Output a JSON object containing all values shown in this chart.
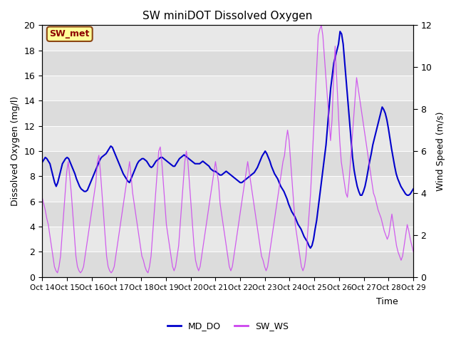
{
  "title": "SW miniDOT Dissolved Oxygen",
  "ylabel_left": "Dissolved Oxygen (mg/l)",
  "ylabel_right": "Wind Speed (m/s)",
  "xlabel": "Time",
  "ylim_left": [
    0,
    20
  ],
  "ylim_right": [
    0,
    12
  ],
  "annotation_text": "SW_met",
  "legend_labels": [
    "MD_DO",
    "SW_WS"
  ],
  "line_color_do": "#0000cc",
  "line_color_ws": "#cc44ee",
  "xtick_labels": [
    "Oct 14",
    "Oct 15",
    "Oct 16",
    "Oct 17",
    "Oct 18",
    "Oct 19",
    "Oct 20",
    "Oct 21",
    "Oct 22",
    "Oct 23",
    "Oct 24",
    "Oct 25",
    "Oct 26",
    "Oct 27",
    "Oct 28",
    "Oct 29"
  ],
  "background_color": "#e8e8e8",
  "band_colors": [
    "#dcdcdc",
    "#e8e8e8"
  ],
  "md_do": [
    9.1,
    9.3,
    9.5,
    9.4,
    9.2,
    9.0,
    8.5,
    8.0,
    7.5,
    7.2,
    7.5,
    8.0,
    8.5,
    9.0,
    9.2,
    9.4,
    9.5,
    9.4,
    9.1,
    8.8,
    8.5,
    8.2,
    7.8,
    7.5,
    7.2,
    7.0,
    6.9,
    6.8,
    6.8,
    6.9,
    7.2,
    7.5,
    7.8,
    8.1,
    8.4,
    8.7,
    9.0,
    9.3,
    9.5,
    9.6,
    9.7,
    9.8,
    10.0,
    10.2,
    10.4,
    10.3,
    10.0,
    9.7,
    9.4,
    9.1,
    8.8,
    8.5,
    8.2,
    8.0,
    7.8,
    7.6,
    7.5,
    7.8,
    8.1,
    8.4,
    8.7,
    9.0,
    9.2,
    9.3,
    9.4,
    9.4,
    9.3,
    9.2,
    9.0,
    8.8,
    8.7,
    8.8,
    9.0,
    9.2,
    9.3,
    9.4,
    9.5,
    9.5,
    9.4,
    9.3,
    9.2,
    9.1,
    9.0,
    8.9,
    8.8,
    8.8,
    9.0,
    9.2,
    9.4,
    9.5,
    9.6,
    9.7,
    9.6,
    9.5,
    9.4,
    9.3,
    9.2,
    9.1,
    9.0,
    9.0,
    9.0,
    9.0,
    9.1,
    9.2,
    9.1,
    9.0,
    8.9,
    8.8,
    8.6,
    8.5,
    8.4,
    8.4,
    8.3,
    8.2,
    8.1,
    8.1,
    8.2,
    8.3,
    8.4,
    8.3,
    8.2,
    8.1,
    8.0,
    7.9,
    7.8,
    7.7,
    7.6,
    7.5,
    7.5,
    7.6,
    7.7,
    7.8,
    7.9,
    8.0,
    8.1,
    8.2,
    8.3,
    8.5,
    8.7,
    9.0,
    9.3,
    9.6,
    9.8,
    10.0,
    9.8,
    9.5,
    9.2,
    8.8,
    8.5,
    8.2,
    8.0,
    7.8,
    7.5,
    7.2,
    7.0,
    6.8,
    6.5,
    6.2,
    5.8,
    5.5,
    5.2,
    5.0,
    4.8,
    4.5,
    4.2,
    4.0,
    3.8,
    3.5,
    3.2,
    3.0,
    2.8,
    2.5,
    2.3,
    2.5,
    3.0,
    3.8,
    4.5,
    5.5,
    6.5,
    7.5,
    8.5,
    9.5,
    10.5,
    12.0,
    13.5,
    15.0,
    16.0,
    17.0,
    17.5,
    18.0,
    18.5,
    19.5,
    19.3,
    18.5,
    17.0,
    15.5,
    14.0,
    12.5,
    11.0,
    9.5,
    8.5,
    7.8,
    7.2,
    6.8,
    6.5,
    6.5,
    6.8,
    7.2,
    7.8,
    8.5,
    9.2,
    9.8,
    10.5,
    11.0,
    11.5,
    12.0,
    12.5,
    13.0,
    13.5,
    13.3,
    13.0,
    12.5,
    11.8,
    11.0,
    10.2,
    9.5,
    8.8,
    8.2,
    7.8,
    7.5,
    7.2,
    7.0,
    6.8,
    6.6,
    6.5,
    6.5,
    6.6,
    6.8,
    7.0
  ],
  "sw_ws": [
    3.8,
    3.5,
    3.2,
    2.8,
    2.5,
    2.0,
    1.5,
    1.0,
    0.5,
    0.3,
    0.2,
    0.5,
    1.0,
    2.0,
    3.0,
    4.0,
    5.0,
    5.5,
    4.8,
    4.0,
    3.0,
    2.0,
    1.0,
    0.5,
    0.3,
    0.2,
    0.3,
    0.5,
    1.0,
    1.5,
    2.0,
    2.5,
    3.0,
    3.5,
    4.0,
    4.5,
    5.5,
    5.8,
    5.0,
    4.0,
    3.0,
    2.0,
    1.0,
    0.5,
    0.3,
    0.2,
    0.3,
    0.5,
    1.0,
    1.5,
    2.0,
    2.5,
    3.0,
    3.5,
    4.0,
    4.5,
    5.0,
    5.5,
    4.8,
    4.0,
    3.5,
    3.0,
    2.5,
    2.0,
    1.5,
    1.0,
    0.8,
    0.5,
    0.3,
    0.2,
    0.5,
    1.0,
    2.0,
    3.0,
    4.0,
    5.0,
    6.0,
    6.2,
    5.5,
    4.5,
    3.5,
    2.5,
    2.0,
    1.5,
    1.0,
    0.5,
    0.3,
    0.5,
    1.0,
    1.5,
    2.5,
    3.5,
    4.5,
    5.5,
    6.0,
    5.5,
    4.5,
    3.5,
    2.5,
    1.5,
    0.8,
    0.5,
    0.3,
    0.5,
    1.0,
    1.5,
    2.0,
    2.5,
    3.0,
    3.5,
    4.0,
    4.5,
    5.0,
    5.5,
    5.0,
    4.5,
    3.5,
    3.0,
    2.5,
    2.0,
    1.5,
    1.0,
    0.5,
    0.3,
    0.5,
    1.0,
    1.5,
    2.0,
    2.5,
    3.0,
    3.5,
    4.0,
    4.5,
    5.0,
    5.5,
    5.0,
    4.5,
    4.0,
    3.5,
    3.0,
    2.5,
    2.0,
    1.5,
    1.0,
    0.8,
    0.5,
    0.3,
    0.5,
    1.0,
    1.5,
    2.0,
    2.5,
    3.0,
    3.5,
    4.0,
    4.5,
    5.0,
    5.5,
    5.8,
    6.5,
    7.0,
    6.5,
    5.5,
    4.5,
    3.5,
    2.5,
    2.0,
    1.5,
    1.0,
    0.5,
    0.3,
    0.5,
    1.0,
    2.0,
    3.0,
    4.0,
    5.5,
    7.0,
    8.5,
    10.0,
    11.5,
    11.8,
    12.0,
    11.5,
    10.5,
    9.5,
    8.5,
    7.5,
    6.5,
    7.5,
    9.5,
    11.0,
    9.5,
    8.0,
    6.5,
    5.5,
    5.0,
    4.5,
    4.0,
    3.8,
    4.5,
    5.5,
    6.5,
    7.5,
    8.5,
    9.5,
    9.0,
    8.5,
    8.0,
    7.5,
    7.0,
    6.5,
    6.0,
    5.5,
    5.0,
    4.5,
    4.0,
    3.8,
    3.5,
    3.2,
    3.0,
    2.8,
    2.5,
    2.2,
    2.0,
    1.8,
    2.0,
    2.5,
    3.0,
    2.5,
    2.0,
    1.5,
    1.2,
    1.0,
    0.8,
    1.0,
    1.5,
    2.0,
    2.5,
    2.2,
    1.8,
    1.5,
    1.2
  ]
}
